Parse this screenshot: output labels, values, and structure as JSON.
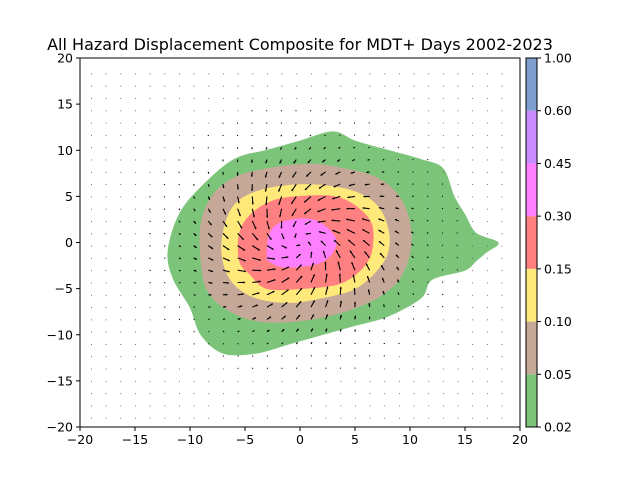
{
  "chart_data": {
    "type": "contour",
    "title": "All Hazard Displacement Composite for MDT+ Days 2002-2023",
    "xlim": [
      -20,
      20
    ],
    "ylim": [
      -20,
      20
    ],
    "xticks": [
      "−20",
      "−15",
      "−10",
      "−5",
      "0",
      "5",
      "10",
      "15",
      "20"
    ],
    "yticks": [
      "−20",
      "−15",
      "−10",
      "−5",
      "0",
      "5",
      "10",
      "15",
      "20"
    ],
    "xtick_values": [
      -20,
      -15,
      -10,
      -5,
      0,
      5,
      10,
      15,
      20
    ],
    "ytick_values": [
      -20,
      -15,
      -10,
      -5,
      0,
      5,
      10,
      15,
      20
    ],
    "colorbar": {
      "levels": [
        0.02,
        0.05,
        0.1,
        0.15,
        0.3,
        0.45,
        0.6,
        1.0
      ],
      "labels": [
        "0.02",
        "0.05",
        "0.10",
        "0.15",
        "0.30",
        "0.45",
        "0.60",
        "1.00"
      ],
      "colors": [
        "#7cc47a",
        "#c6a898",
        "#ffe97a",
        "#ff8080",
        "#ff80ff",
        "#c88cff",
        "#7f9fcf"
      ]
    },
    "contours": [
      {
        "level": 0.02,
        "color": "#7cc47a",
        "points": [
          [
            -11.5,
            -4
          ],
          [
            -12,
            -1
          ],
          [
            -11,
            3
          ],
          [
            -9,
            6
          ],
          [
            -6,
            9
          ],
          [
            -3,
            10
          ],
          [
            0,
            11
          ],
          [
            3,
            12
          ],
          [
            5,
            11
          ],
          [
            8,
            10
          ],
          [
            11,
            9
          ],
          [
            13,
            8
          ],
          [
            14,
            5
          ],
          [
            15,
            3
          ],
          [
            16,
            1
          ],
          [
            18,
            0
          ],
          [
            17,
            -1
          ],
          [
            16,
            -2
          ],
          [
            15,
            -3
          ],
          [
            12,
            -4
          ],
          [
            11,
            -6
          ],
          [
            8,
            -8
          ],
          [
            5,
            -9
          ],
          [
            2,
            -10
          ],
          [
            -1,
            -11
          ],
          [
            -4,
            -12
          ],
          [
            -7,
            -12
          ],
          [
            -9,
            -10
          ],
          [
            -10,
            -7
          ]
        ]
      },
      {
        "level": 0.05,
        "color": "#c6a898",
        "points": [
          [
            -9,
            -2
          ],
          [
            -9,
            2
          ],
          [
            -8,
            5
          ],
          [
            -6,
            7
          ],
          [
            -3,
            8
          ],
          [
            1,
            8.5
          ],
          [
            4,
            8
          ],
          [
            7,
            7
          ],
          [
            9,
            5
          ],
          [
            10,
            2
          ],
          [
            10,
            -1
          ],
          [
            9,
            -4
          ],
          [
            7,
            -6
          ],
          [
            4,
            -7.5
          ],
          [
            0,
            -8.5
          ],
          [
            -4,
            -8.5
          ],
          [
            -7,
            -7
          ],
          [
            -8.5,
            -5
          ]
        ]
      },
      {
        "level": 0.1,
        "color": "#ffe97a",
        "points": [
          [
            -7,
            -2
          ],
          [
            -7,
            1
          ],
          [
            -6,
            4
          ],
          [
            -4,
            5.5
          ],
          [
            -1,
            6.2
          ],
          [
            2,
            6.2
          ],
          [
            5,
            5.5
          ],
          [
            7,
            4
          ],
          [
            8,
            1.5
          ],
          [
            8,
            -1
          ],
          [
            7,
            -3
          ],
          [
            5,
            -5
          ],
          [
            2,
            -6
          ],
          [
            -1,
            -6.5
          ],
          [
            -4,
            -6
          ],
          [
            -6,
            -4.5
          ]
        ]
      },
      {
        "level": 0.15,
        "color": "#ff8080",
        "points": [
          [
            -5.5,
            -2
          ],
          [
            -5.5,
            1
          ],
          [
            -4.5,
            3
          ],
          [
            -2.5,
            4.5
          ],
          [
            0,
            5
          ],
          [
            3,
            5
          ],
          [
            5,
            4
          ],
          [
            6.5,
            2
          ],
          [
            6.5,
            -1
          ],
          [
            5.5,
            -3
          ],
          [
            3.5,
            -4.5
          ],
          [
            0,
            -5
          ],
          [
            -3,
            -5
          ],
          [
            -4.5,
            -3.5
          ]
        ]
      },
      {
        "level": 0.3,
        "color": "#ff80ff",
        "points": [
          [
            -3,
            -1.5
          ],
          [
            -2.8,
            0.8
          ],
          [
            -2,
            2
          ],
          [
            -0.5,
            2.5
          ],
          [
            1,
            2.5
          ],
          [
            2,
            2
          ],
          [
            3.2,
            0.5
          ],
          [
            3,
            -1
          ],
          [
            1.8,
            -2.2
          ],
          [
            0,
            -2.6
          ],
          [
            -1.8,
            -2.6
          ],
          [
            -2.8,
            -2
          ]
        ]
      }
    ]
  }
}
